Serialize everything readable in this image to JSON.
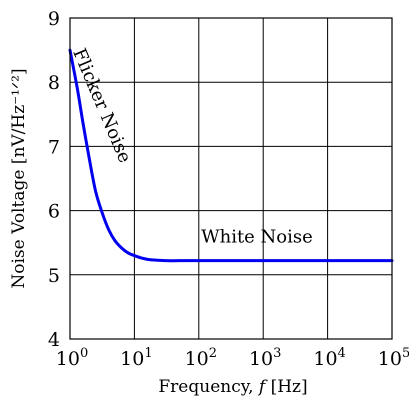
{
  "chart_data": {
    "type": "line",
    "title": "",
    "xlabel": "Frequency, f [Hz]",
    "ylabel": "Noise Voltage [nV/Hz⁻¹ᐟ²]",
    "xscale": "log",
    "xlim": [
      1,
      100000
    ],
    "ylim": [
      4,
      9
    ],
    "grid": true,
    "x_ticks": [
      {
        "value": 1,
        "base": "10",
        "exp": "0"
      },
      {
        "value": 10,
        "base": "10",
        "exp": "1"
      },
      {
        "value": 100,
        "base": "10",
        "exp": "2"
      },
      {
        "value": 1000,
        "base": "10",
        "exp": "3"
      },
      {
        "value": 10000,
        "base": "10",
        "exp": "4"
      },
      {
        "value": 100000,
        "base": "10",
        "exp": "5"
      }
    ],
    "y_ticks": [
      {
        "value": 4,
        "label": "4"
      },
      {
        "value": 5,
        "label": "5"
      },
      {
        "value": 6,
        "label": "6"
      },
      {
        "value": 7,
        "label": "7"
      },
      {
        "value": 8,
        "label": "8"
      },
      {
        "value": 9,
        "label": "9"
      }
    ],
    "series": [
      {
        "color": "#0000ee",
        "x": [
          1,
          1.3,
          1.6,
          2,
          2.5,
          3.2,
          4,
          5,
          6.3,
          8,
          10,
          13,
          16,
          20,
          30,
          50,
          100,
          1000,
          10000,
          100000
        ],
        "y": [
          8.5,
          7.9,
          7.35,
          6.8,
          6.3,
          5.95,
          5.7,
          5.53,
          5.42,
          5.34,
          5.3,
          5.26,
          5.24,
          5.23,
          5.22,
          5.22,
          5.22,
          5.22,
          5.22,
          5.22
        ]
      }
    ],
    "annotations": [
      {
        "text": "Flicker Noise",
        "x": 2.6,
        "y": 7.6,
        "rotate": 67
      },
      {
        "text": "White Noise",
        "x": 800,
        "y": 5.5,
        "rotate": 0
      }
    ]
  }
}
